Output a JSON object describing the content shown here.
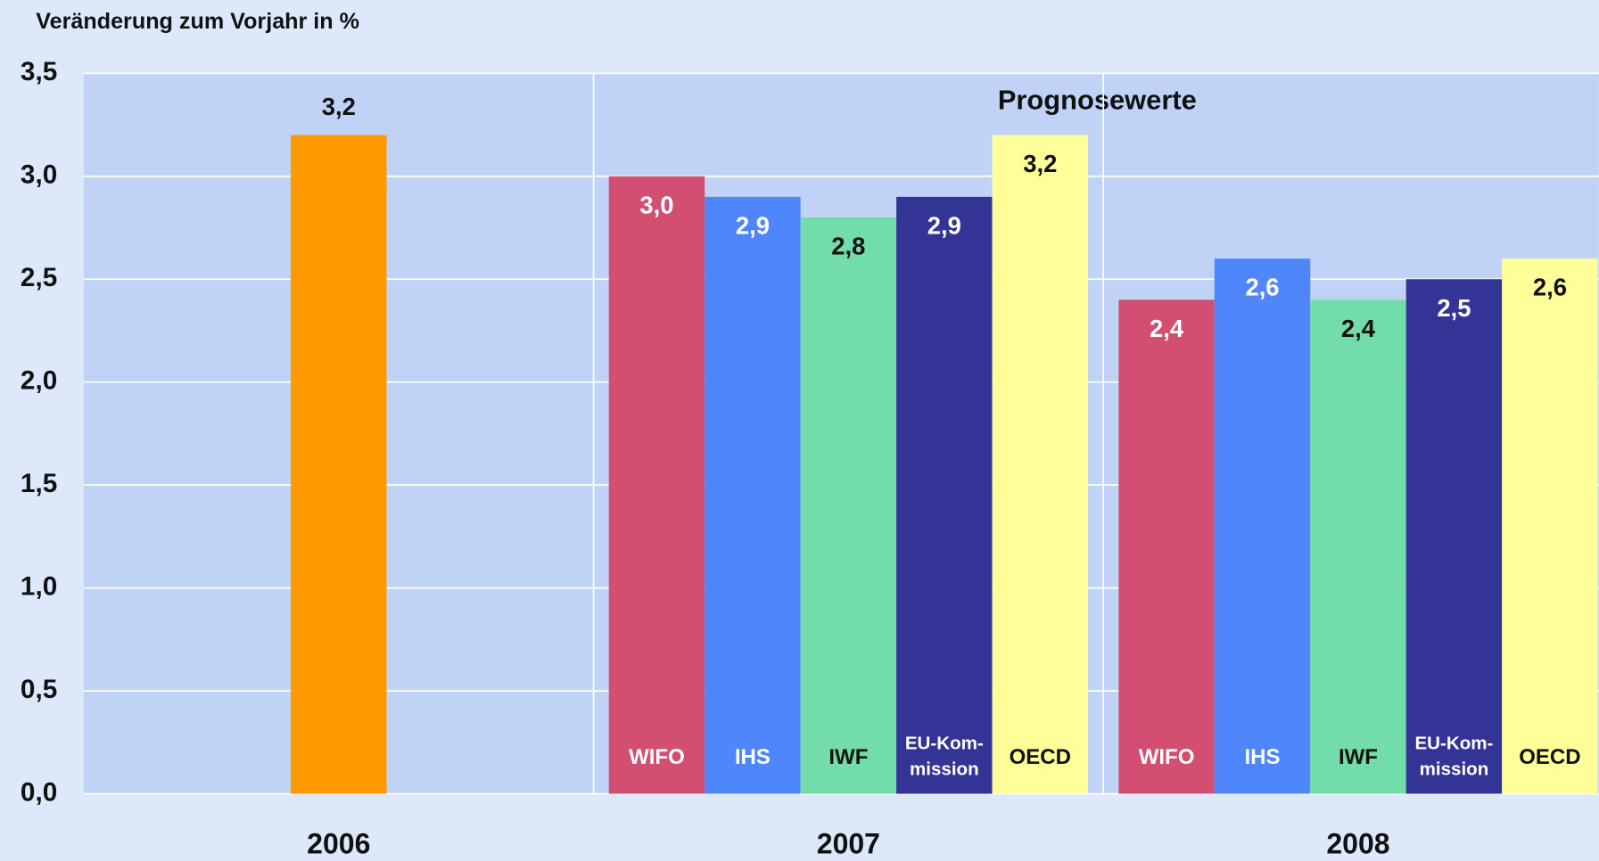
{
  "chart_data": {
    "type": "bar",
    "title": "Veränderung zum Vorjahr in %",
    "annotation": "Prognosewerte",
    "categories": [
      "2006",
      "2007",
      "2008"
    ],
    "series": [
      {
        "color": "#ff9900",
        "values": [
          3.2,
          null,
          null
        ],
        "value_labels": [
          "3,2",
          null,
          null
        ]
      },
      {
        "name": "WIFO",
        "color": "#d24f72",
        "values": [
          null,
          3.0,
          2.4
        ],
        "value_labels": [
          null,
          "3,0",
          "2,4"
        ]
      },
      {
        "name": "IHS",
        "color": "#4f86fc",
        "values": [
          null,
          2.9,
          2.6
        ],
        "value_labels": [
          null,
          "2,9",
          "2,6"
        ]
      },
      {
        "name": "IWF",
        "color": "#72dcaa",
        "values": [
          null,
          2.8,
          2.4
        ],
        "value_labels": [
          null,
          "2,8",
          "2,4"
        ]
      },
      {
        "name": "EU-Kom- mission",
        "color": "#343396",
        "values": [
          null,
          2.9,
          2.5
        ],
        "value_labels": [
          null,
          "2,9",
          "2,5"
        ]
      },
      {
        "name": "OECD",
        "color": "#ffff99",
        "values": [
          null,
          3.2,
          2.6
        ],
        "value_labels": [
          null,
          "3,2",
          "2,6"
        ]
      }
    ],
    "ylim": [
      0,
      3.5
    ],
    "yticks": [
      {
        "value": 0,
        "label": "0,0"
      },
      {
        "value": 0.5,
        "label": "0,5"
      },
      {
        "value": 1,
        "label": "1,0"
      },
      {
        "value": 1.5,
        "label": "1,5"
      },
      {
        "value": 2,
        "label": "2,0"
      },
      {
        "value": 2.5,
        "label": "2,5"
      },
      {
        "value": 3,
        "label": "3,0"
      },
      {
        "value": 3.5,
        "label": "3,5"
      }
    ],
    "grid": true
  }
}
